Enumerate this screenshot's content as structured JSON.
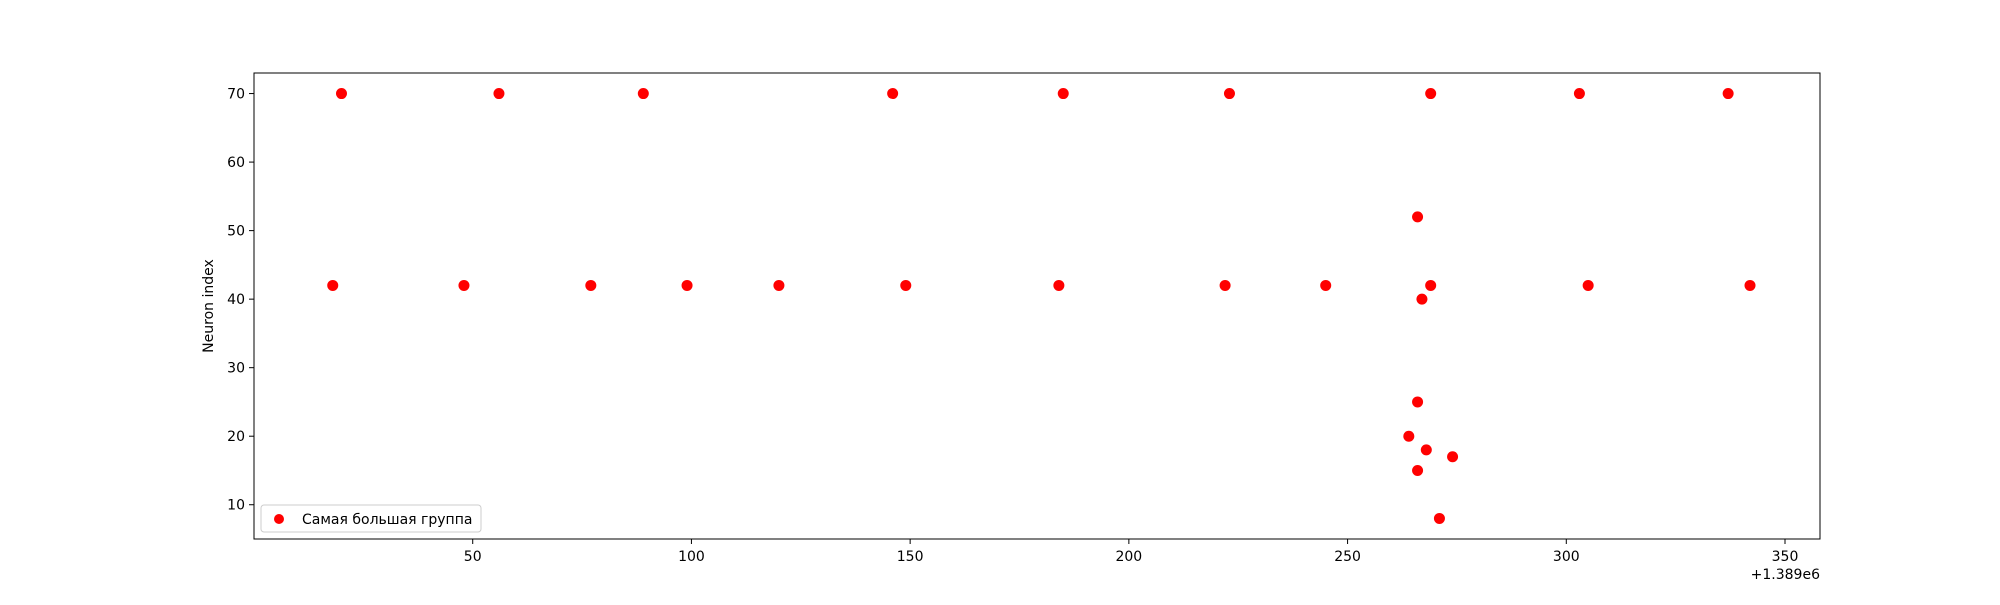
{
  "chart_data": {
    "type": "scatter",
    "title": "",
    "xlabel": "",
    "ylabel": "Neuron index",
    "x_offset_label": "+1.389e6",
    "xlim": [
      1389000,
      1389358
    ],
    "ylim": [
      5,
      73
    ],
    "xticks": [
      1389050,
      1389100,
      1389150,
      1389200,
      1389250,
      1389300,
      1389350
    ],
    "xtick_labels": [
      "50",
      "100",
      "150",
      "200",
      "250",
      "300",
      "350"
    ],
    "yticks": [
      10,
      20,
      30,
      40,
      50,
      60,
      70
    ],
    "ytick_labels": [
      "10",
      "20",
      "30",
      "40",
      "50",
      "60",
      "70"
    ],
    "grid": false,
    "legend_position": "lower-left",
    "series": [
      {
        "name": "Самая большая группа",
        "color": "#ff0000",
        "points": [
          {
            "x": 1389020,
            "y": 70
          },
          {
            "x": 1389056,
            "y": 70
          },
          {
            "x": 1389089,
            "y": 70
          },
          {
            "x": 1389146,
            "y": 70
          },
          {
            "x": 1389185,
            "y": 70
          },
          {
            "x": 1389223,
            "y": 70
          },
          {
            "x": 1389269,
            "y": 70
          },
          {
            "x": 1389303,
            "y": 70
          },
          {
            "x": 1389337,
            "y": 70
          },
          {
            "x": 1389018,
            "y": 42
          },
          {
            "x": 1389048,
            "y": 42
          },
          {
            "x": 1389077,
            "y": 42
          },
          {
            "x": 1389099,
            "y": 42
          },
          {
            "x": 1389120,
            "y": 42
          },
          {
            "x": 1389149,
            "y": 42
          },
          {
            "x": 1389184,
            "y": 42
          },
          {
            "x": 1389222,
            "y": 42
          },
          {
            "x": 1389245,
            "y": 42
          },
          {
            "x": 1389269,
            "y": 42
          },
          {
            "x": 1389305,
            "y": 42
          },
          {
            "x": 1389342,
            "y": 42
          },
          {
            "x": 1389266,
            "y": 52
          },
          {
            "x": 1389267,
            "y": 40
          },
          {
            "x": 1389266,
            "y": 25
          },
          {
            "x": 1389264,
            "y": 20
          },
          {
            "x": 1389268,
            "y": 18
          },
          {
            "x": 1389274,
            "y": 17
          },
          {
            "x": 1389266,
            "y": 15
          },
          {
            "x": 1389271,
            "y": 8
          }
        ]
      }
    ]
  }
}
